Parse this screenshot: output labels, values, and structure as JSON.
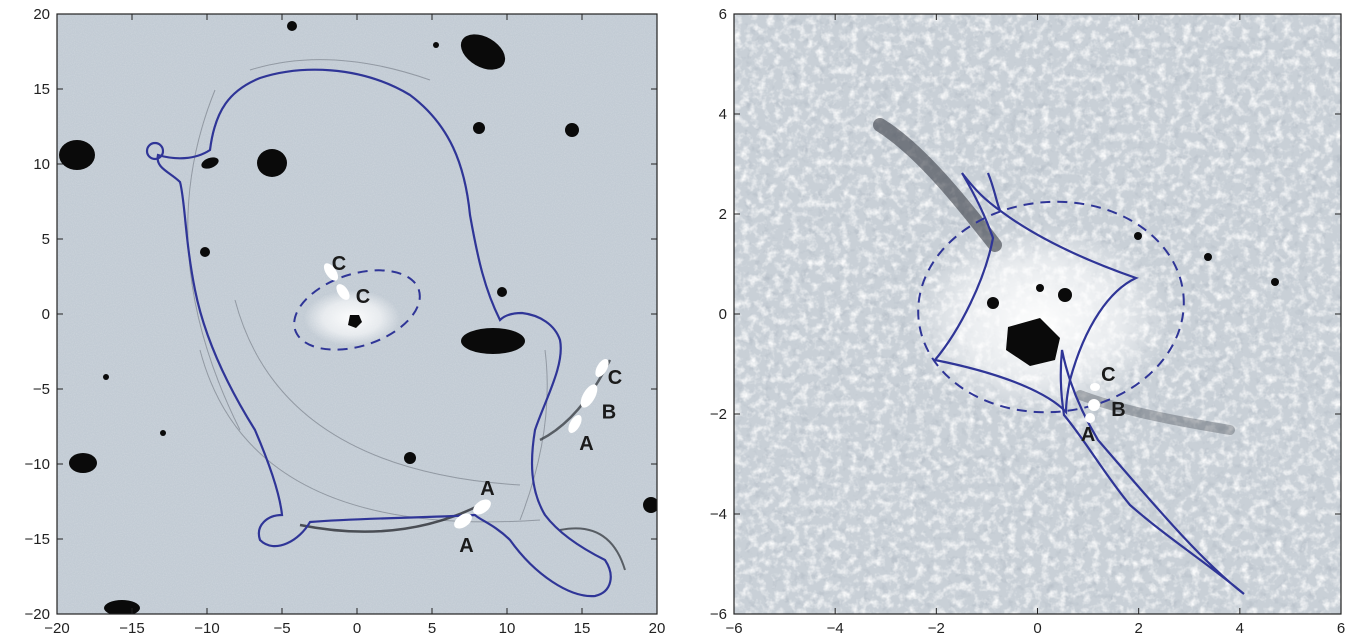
{
  "panels": [
    {
      "id": "left",
      "x_ticks": [
        "−20",
        "−15",
        "−10",
        "−5",
        "0",
        "5",
        "10",
        "15",
        "20"
      ],
      "y_ticks": [
        "20",
        "15",
        "10",
        "5",
        "0",
        "−5",
        "−10",
        "−15",
        "−20"
      ],
      "x_range": [
        -20,
        20
      ],
      "y_range": [
        -20,
        20
      ],
      "background": "#c2cbd4",
      "curve_color": "#2f3597",
      "image_labels": [
        {
          "text": "C",
          "x": -1.2,
          "y": 3.4
        },
        {
          "text": "C",
          "x": 0.4,
          "y": 1.2
        },
        {
          "text": "A",
          "x": 8.7,
          "y": -11.6
        },
        {
          "text": "A",
          "x": 7.3,
          "y": -15.4
        },
        {
          "text": "C",
          "x": 17.2,
          "y": -4.2
        },
        {
          "text": "B",
          "x": 16.8,
          "y": -6.5
        },
        {
          "text": "A",
          "x": 15.3,
          "y": -8.6
        }
      ]
    },
    {
      "id": "right",
      "x_ticks": [
        "−6",
        "−4",
        "−2",
        "0",
        "2",
        "4",
        "6"
      ],
      "y_ticks": [
        "6",
        "4",
        "2",
        "0",
        "−2",
        "−4",
        "−6"
      ],
      "x_range": [
        -6,
        6
      ],
      "y_range": [
        -6,
        6
      ],
      "background": "#c9d0d7",
      "curve_color": "#2f3597",
      "image_labels": [
        {
          "text": "C",
          "x": 1.4,
          "y": -1.2
        },
        {
          "text": "B",
          "x": 1.6,
          "y": -1.9
        },
        {
          "text": "A",
          "x": 1.0,
          "y": -2.4
        }
      ]
    }
  ]
}
